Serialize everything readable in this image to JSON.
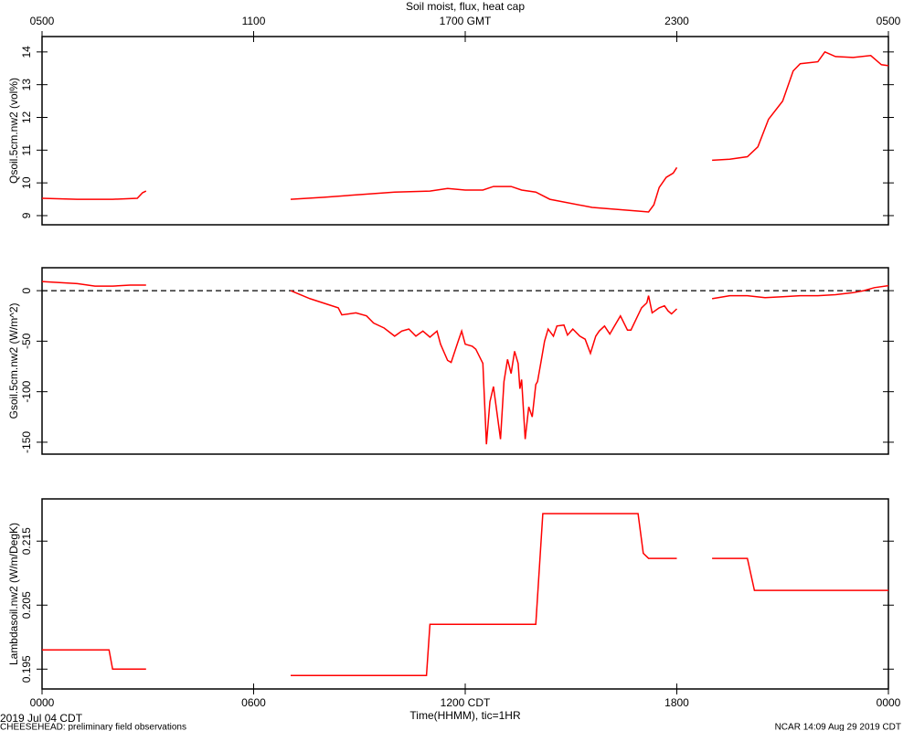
{
  "title": "Soil moist, flux, heat cap",
  "footer": {
    "date": "2019 Jul 04 CDT",
    "project": "CHEESEHEAD: preliminary field observations",
    "stamp": "NCAR 14:09 Aug 29 2019 CDT"
  },
  "chart_data": [
    {
      "type": "line",
      "ylabel": "Qsoil.5cm.nw2 (vol%)",
      "color": "#ff0000",
      "xlim": [
        0,
        24
      ],
      "ylim": [
        8.72,
        14.47
      ],
      "yticks": [
        9,
        10,
        11,
        12,
        13,
        14
      ],
      "x2ticks": [
        {
          "value": 0,
          "label": "0500"
        },
        {
          "value": 6,
          "label": "1100"
        },
        {
          "value": 12,
          "label": "1700 GMT"
        },
        {
          "value": 18,
          "label": "2300"
        },
        {
          "value": 24,
          "label": "0500"
        }
      ],
      "x": [
        0,
        1,
        2,
        2.7,
        2.85,
        2.95,
        3,
        7.05,
        8,
        9,
        10,
        11,
        11.5,
        12,
        12.5,
        12.8,
        13.3,
        13.6,
        14,
        14.4,
        15.6,
        16.9,
        17.2,
        17.35,
        17.5,
        17.7,
        17.9,
        18,
        18.5,
        19,
        19.5,
        20,
        20.3,
        20.6,
        21,
        21.3,
        21.5,
        22,
        22.2,
        22.5,
        23,
        23.5,
        23.8,
        24
      ],
      "values": [
        9.53,
        9.5,
        9.5,
        9.53,
        9.7,
        9.75,
        null,
        9.5,
        9.56,
        9.64,
        9.72,
        9.75,
        9.83,
        9.78,
        9.78,
        9.89,
        9.89,
        9.78,
        9.72,
        9.5,
        9.25,
        9.14,
        9.11,
        9.33,
        9.86,
        10.17,
        10.3,
        10.47,
        null,
        10.69,
        10.72,
        10.8,
        11.1,
        11.94,
        12.5,
        13.42,
        13.64,
        13.7,
        14.0,
        13.86,
        13.83,
        13.89,
        13.61,
        13.58
      ]
    },
    {
      "type": "line",
      "ylabel": "Gsoil.5cm.nw2 (W/m^2)",
      "color": "#ff0000",
      "xlim": [
        0,
        24
      ],
      "ylim": [
        -161.8,
        22.7
      ],
      "yticks": [
        -150,
        -100,
        -50,
        0
      ],
      "reference_line": 0,
      "x": [
        0,
        1,
        1.5,
        2,
        2.5,
        2.95,
        3,
        7.05,
        7.6,
        8.4,
        8.5,
        8.9,
        9.2,
        9.4,
        9.7,
        10,
        10.2,
        10.4,
        10.6,
        10.8,
        11,
        11.2,
        11.3,
        11.5,
        11.6,
        11.8,
        11.9,
        12,
        12.2,
        12.3,
        12.5,
        12.6,
        12.7,
        12.8,
        13,
        13.1,
        13.2,
        13.3,
        13.4,
        13.5,
        13.55,
        13.6,
        13.7,
        13.8,
        13.9,
        14,
        14.05,
        14.15,
        14.25,
        14.35,
        14.5,
        14.6,
        14.8,
        14.9,
        15.05,
        15.25,
        15.4,
        15.55,
        15.7,
        15.8,
        15.95,
        16.1,
        16.2,
        16.4,
        16.6,
        16.7,
        16.85,
        17,
        17.15,
        17.2,
        17.3,
        17.5,
        17.65,
        17.75,
        17.85,
        18,
        18.5,
        19,
        19.5,
        20,
        20.5,
        21,
        21.5,
        22,
        22.5,
        23,
        23.3,
        23.6,
        24
      ],
      "values": [
        9,
        7,
        4.5,
        4.5,
        5.5,
        5.5,
        null,
        0,
        -8,
        -17,
        -24,
        -22,
        -25,
        -32,
        -37,
        -45,
        -40,
        -38,
        -45,
        -40,
        -46,
        -40,
        -53,
        -69,
        -71,
        -50,
        -40,
        -53,
        -55,
        -58,
        -72,
        -152,
        -110,
        -95,
        -147,
        -90,
        -68,
        -82,
        -60,
        -72,
        -97,
        -88,
        -147,
        -115,
        -125,
        -93,
        -90,
        -70,
        -50,
        -38,
        -45,
        -35,
        -34,
        -44,
        -38,
        -45,
        -48,
        -62,
        -45,
        -40,
        -35,
        -43,
        -37,
        -25,
        -39,
        -39,
        -28,
        -17,
        -12,
        -5,
        -22,
        -17,
        -15,
        -20,
        -23,
        -18,
        null,
        -8,
        -5,
        -5,
        -7,
        -6,
        -5,
        -5,
        -4,
        -2,
        0,
        3,
        5
      ]
    },
    {
      "type": "line",
      "ylabel": "Lambdasoil.nw2 (W/m/DegK)",
      "color": "#ff0000",
      "xlim": [
        0,
        24
      ],
      "ylim": [
        0.1919,
        0.2216
      ],
      "yticks": [
        0.195,
        0.205,
        0.215
      ],
      "xlabel": "Time(HHMM), tic=1HR",
      "xticks": [
        {
          "value": 0,
          "label": "0000"
        },
        {
          "value": 6,
          "label": "0600"
        },
        {
          "value": 12,
          "label": "1200 CDT"
        },
        {
          "value": 18,
          "label": "1800"
        },
        {
          "value": 24,
          "label": "0000"
        }
      ],
      "x": [
        0,
        1.9,
        2.0,
        2.95,
        3,
        7.05,
        10.9,
        11.0,
        14.0,
        14.2,
        16.9,
        17.05,
        17.2,
        18.0,
        18.5,
        19.0,
        20.0,
        20.2,
        24
      ],
      "values": [
        0.198,
        0.198,
        0.195,
        0.195,
        null,
        0.194,
        0.194,
        0.202,
        0.202,
        0.2193,
        0.2193,
        0.2131,
        0.2123,
        0.2123,
        null,
        0.2123,
        0.2123,
        0.2073,
        0.2073
      ]
    }
  ]
}
